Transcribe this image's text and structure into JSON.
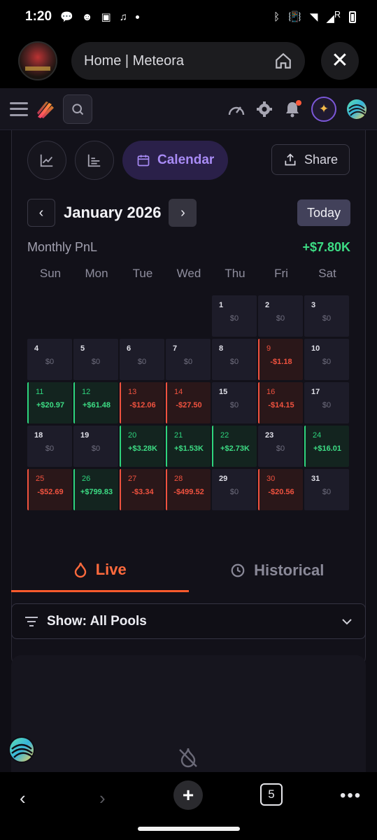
{
  "status_bar": {
    "time": "1:20",
    "signal_label": "R"
  },
  "browser": {
    "url_text": "Home | Meteora",
    "close_glyph": "✕"
  },
  "header": {
    "icons": [
      "menu-icon",
      "meteora-logo-icon",
      "search-icon",
      "speedometer-icon",
      "gear-icon",
      "bell-icon",
      "sparkle-icon",
      "avatar"
    ],
    "accent": "#7b57d8"
  },
  "pnl_card": {
    "calendar_label": "Calendar",
    "share_label": "Share",
    "month": "January 2026",
    "today_label": "Today",
    "monthly_label": "Monthly PnL",
    "monthly_value": "+$7.80K",
    "weekdays": [
      "Sun",
      "Mon",
      "Tue",
      "Wed",
      "Thu",
      "Fri",
      "Sat"
    ],
    "days": [
      {
        "d": "1",
        "v": "$0",
        "t": "zero"
      },
      {
        "d": "2",
        "v": "$0",
        "t": "zero"
      },
      {
        "d": "3",
        "v": "$0",
        "t": "zero"
      },
      {
        "d": "4",
        "v": "$0",
        "t": "zero"
      },
      {
        "d": "5",
        "v": "$0",
        "t": "zero"
      },
      {
        "d": "6",
        "v": "$0",
        "t": "zero"
      },
      {
        "d": "7",
        "v": "$0",
        "t": "zero"
      },
      {
        "d": "8",
        "v": "$0",
        "t": "zero"
      },
      {
        "d": "9",
        "v": "-$1.18",
        "t": "neg"
      },
      {
        "d": "10",
        "v": "$0",
        "t": "zero"
      },
      {
        "d": "11",
        "v": "+$20.97",
        "t": "pos"
      },
      {
        "d": "12",
        "v": "+$61.48",
        "t": "pos"
      },
      {
        "d": "13",
        "v": "-$12.06",
        "t": "neg"
      },
      {
        "d": "14",
        "v": "-$27.50",
        "t": "neg"
      },
      {
        "d": "15",
        "v": "$0",
        "t": "zero"
      },
      {
        "d": "16",
        "v": "-$14.15",
        "t": "neg"
      },
      {
        "d": "17",
        "v": "$0",
        "t": "zero"
      },
      {
        "d": "18",
        "v": "$0",
        "t": "zero"
      },
      {
        "d": "19",
        "v": "$0",
        "t": "zero"
      },
      {
        "d": "20",
        "v": "+$3.28K",
        "t": "pos"
      },
      {
        "d": "21",
        "v": "+$1.53K",
        "t": "pos"
      },
      {
        "d": "22",
        "v": "+$2.73K",
        "t": "pos"
      },
      {
        "d": "23",
        "v": "$0",
        "t": "zero"
      },
      {
        "d": "24",
        "v": "+$16.01",
        "t": "pos"
      },
      {
        "d": "25",
        "v": "-$52.69",
        "t": "neg"
      },
      {
        "d": "26",
        "v": "+$799.83",
        "t": "pos"
      },
      {
        "d": "27",
        "v": "-$3.34",
        "t": "neg"
      },
      {
        "d": "28",
        "v": "-$499.52",
        "t": "neg"
      },
      {
        "d": "29",
        "v": "$0",
        "t": "zero"
      },
      {
        "d": "30",
        "v": "-$20.56",
        "t": "neg"
      },
      {
        "d": "31",
        "v": "$0",
        "t": "zero"
      }
    ],
    "positive_color": "#3ddc84",
    "negative_color": "#f0523f"
  },
  "tabs": {
    "live": "Live",
    "historical": "Historical",
    "active": "live"
  },
  "filter": {
    "label": "Show: All Pools"
  },
  "bottom_nav": {
    "tab_count": "5"
  }
}
